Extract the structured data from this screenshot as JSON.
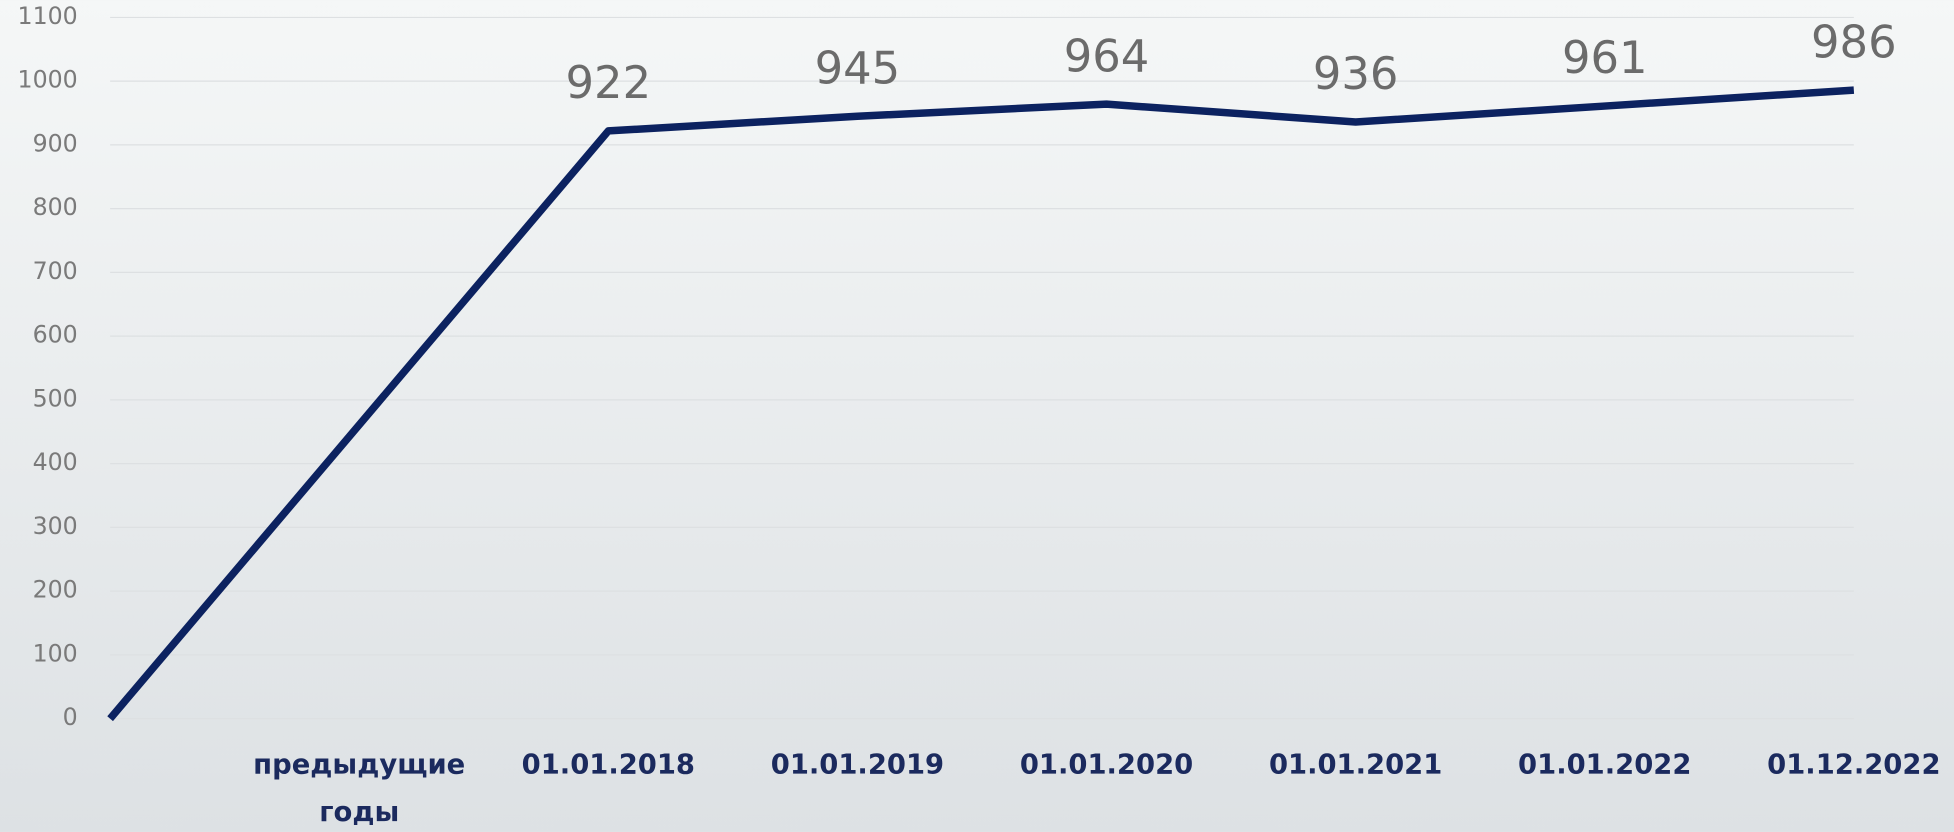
{
  "chart_data": {
    "type": "line",
    "categories": [
      null,
      "предыдущие годы",
      "01.01.2018",
      "01.01.2019",
      "01.01.2020",
      "01.01.2021",
      "01.01.2022",
      "01.12.2022"
    ],
    "values": [
      0,
      461,
      922,
      945,
      964,
      936,
      961,
      986
    ],
    "value_labels": [
      null,
      null,
      "922",
      "945",
      "964",
      "936",
      "961",
      "986"
    ],
    "color": "#0c2260",
    "ylim": [
      0,
      1100
    ],
    "yticks": [
      0,
      100,
      200,
      300,
      400,
      500,
      600,
      700,
      800,
      900,
      1000,
      1100
    ],
    "grid": true
  }
}
